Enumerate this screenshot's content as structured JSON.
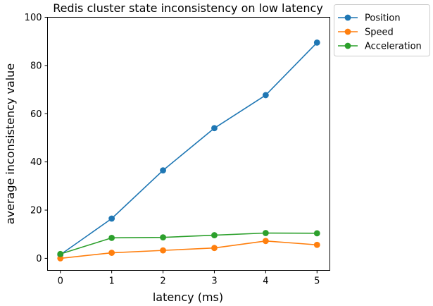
{
  "chart_data": {
    "type": "line",
    "title": "Redis cluster state inconsistency on low latency",
    "xlabel": "latency (ms)",
    "ylabel": "average inconsistency value",
    "x": [
      0,
      1,
      2,
      3,
      4,
      5
    ],
    "xlim": [
      -0.25,
      5.25
    ],
    "ylim": [
      -5,
      100
    ],
    "xticks": [
      0,
      1,
      2,
      3,
      4,
      5
    ],
    "yticks": [
      0,
      20,
      40,
      60,
      80,
      100
    ],
    "grid": false,
    "legend_position": "outside-upper-right",
    "series": [
      {
        "name": "Position",
        "color": "#1f77b4",
        "marker": "circle",
        "values": [
          1.5,
          16.5,
          36.5,
          54,
          67.7,
          89.5
        ]
      },
      {
        "name": "Speed",
        "color": "#ff7f0e",
        "marker": "circle",
        "values": [
          0,
          2.3,
          3.3,
          4.3,
          7.2,
          5.6
        ]
      },
      {
        "name": "Acceleration",
        "color": "#2ca02c",
        "marker": "circle",
        "values": [
          1.8,
          8.5,
          8.7,
          9.6,
          10.5,
          10.4
        ]
      }
    ]
  }
}
